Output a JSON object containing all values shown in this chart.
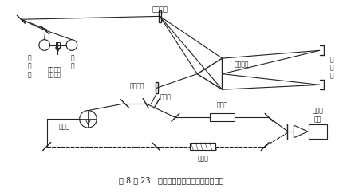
{
  "title": "图 8 － 23   双光束型仪器的工作原理示意图",
  "bg_color": "#ffffff",
  "line_color": "#222222",
  "labels": {
    "inlet_slit": "入口狭缝",
    "outlet_slit": "出口狭缝",
    "quartz_prism": "石英棱镜",
    "reflect_mirror": "反\n射\n镜",
    "fan_mirror": "扇形镜",
    "modulator": "调制板",
    "ref_cell": "参比池",
    "sample_cell": "试样池",
    "pmt": "光电倍\n增管",
    "lamp_label1": "钨\n丝\n灯",
    "lamp_label2": "氘\n灯",
    "flat_mirror": "交换灯用\n的平面镜"
  }
}
